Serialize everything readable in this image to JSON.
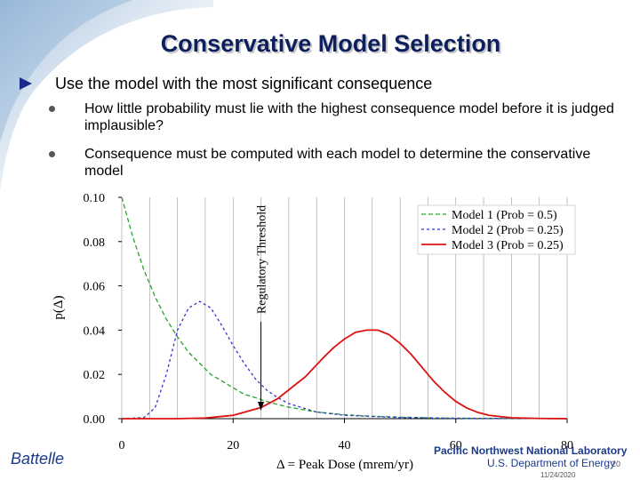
{
  "slide": {
    "title": "Conservative Model Selection",
    "bullet": "Use the model with the most significant consequence",
    "subbullets": [
      "How little probability must lie with the highest consequence model before it is judged implausible?",
      "Consequence must be computed with each model to determine the conservative model"
    ],
    "footer": {
      "org": "Battelle",
      "lab": "Pacific Northwest National Laboratory",
      "dept": "U.S. Department of Energy",
      "page": "20",
      "date": "11/24/2020"
    }
  },
  "chart_data": {
    "type": "line",
    "xlabel": "Δ = Peak Dose (mrem/yr)",
    "ylabel": "p(Δ)",
    "xlim": [
      0,
      80
    ],
    "ylim": [
      0,
      0.1
    ],
    "xticks": [
      "0",
      "20",
      "40",
      "60",
      "80"
    ],
    "yticks": [
      "0.00",
      "0.02",
      "0.04",
      "0.06",
      "0.08",
      "0.10"
    ],
    "legend_position": "top-right",
    "annotation": "Regulatory Threshold",
    "threshold_x": 25,
    "series": [
      {
        "name": "Model 1 (Prob = 0.5)",
        "color": "#2ca02c",
        "dash": "dashed",
        "x": [
          0,
          2,
          4,
          6,
          8,
          10,
          12,
          14,
          16,
          18,
          20,
          22,
          24,
          26,
          28,
          30,
          35,
          40,
          45,
          50,
          55,
          60,
          70,
          80
        ],
        "y": [
          0.1,
          0.082,
          0.067,
          0.055,
          0.045,
          0.037,
          0.03,
          0.025,
          0.02,
          0.017,
          0.014,
          0.011,
          0.0095,
          0.0078,
          0.0064,
          0.0052,
          0.003,
          0.0018,
          0.0011,
          0.0007,
          0.0004,
          0.0002,
          0.0001,
          0.0
        ]
      },
      {
        "name": "Model 2 (Prob = 0.25)",
        "color": "#3333cc",
        "dash": "dotted",
        "x": [
          0,
          4,
          6,
          8,
          10,
          12,
          14,
          16,
          18,
          20,
          22,
          24,
          26,
          28,
          30,
          35,
          40,
          50,
          60,
          80
        ],
        "y": [
          0.0,
          0.0005,
          0.005,
          0.02,
          0.04,
          0.05,
          0.053,
          0.05,
          0.042,
          0.033,
          0.025,
          0.018,
          0.013,
          0.0095,
          0.0068,
          0.003,
          0.0015,
          0.0005,
          0.0002,
          0.0
        ]
      },
      {
        "name": "Model 3 (Prob = 0.25)",
        "color": "#dd1111",
        "dash": "solid",
        "x": [
          0,
          10,
          15,
          20,
          25,
          28,
          30,
          33,
          36,
          38,
          40,
          42,
          44,
          45,
          46,
          48,
          50,
          52,
          54,
          56,
          58,
          60,
          62,
          64,
          66,
          70,
          75,
          80
        ],
        "y": [
          0.0,
          0.0,
          0.0003,
          0.0015,
          0.005,
          0.009,
          0.013,
          0.019,
          0.027,
          0.032,
          0.036,
          0.039,
          0.04,
          0.04,
          0.04,
          0.038,
          0.034,
          0.029,
          0.023,
          0.017,
          0.012,
          0.0078,
          0.0048,
          0.0028,
          0.0015,
          0.0004,
          0.0001,
          0.0
        ]
      }
    ]
  }
}
